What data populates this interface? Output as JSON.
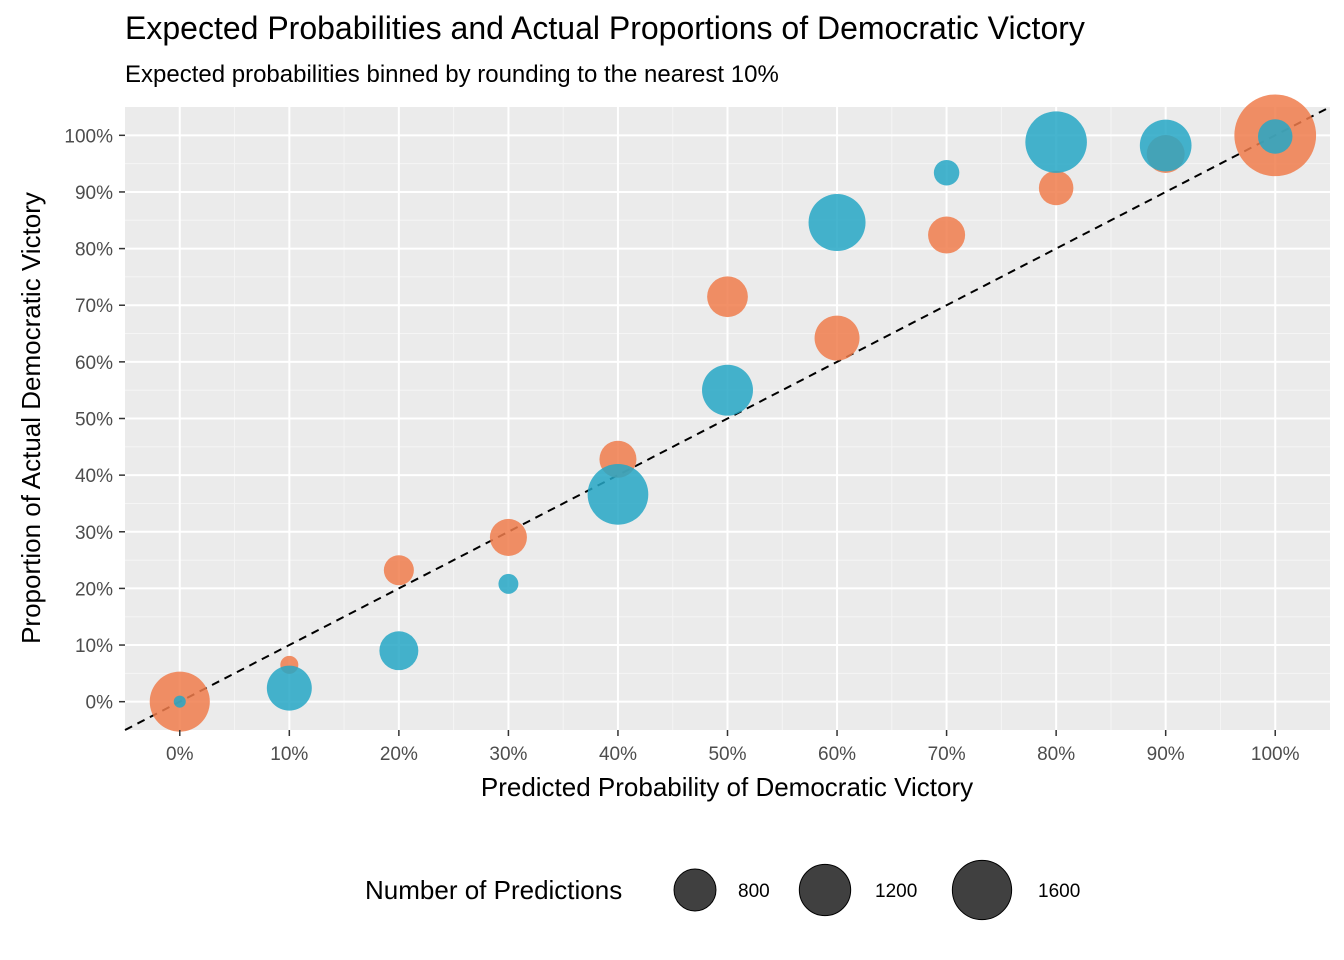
{
  "chart_data": {
    "type": "scatter",
    "title": "Expected Probabilities and Actual Proportions of Democratic Victory",
    "subtitle": "Expected probabilities binned by rounding to the nearest 10%",
    "xlabel": "Predicted Probability of Democratic Victory",
    "ylabel": "Proportion of Actual Democratic Victory",
    "xlim": [
      -0.05,
      1.05
    ],
    "ylim": [
      -0.05,
      1.05
    ],
    "x_ticks": [
      0,
      0.1,
      0.2,
      0.3,
      0.4,
      0.5,
      0.6,
      0.7,
      0.8,
      0.9,
      1.0
    ],
    "x_tick_labels": [
      "0%",
      "10%",
      "20%",
      "30%",
      "40%",
      "50%",
      "60%",
      "70%",
      "80%",
      "90%",
      "100%"
    ],
    "y_ticks": [
      0,
      0.1,
      0.2,
      0.3,
      0.4,
      0.5,
      0.6,
      0.7,
      0.8,
      0.9,
      1.0
    ],
    "y_tick_labels": [
      "0%",
      "10%",
      "20%",
      "30%",
      "40%",
      "50%",
      "60%",
      "70%",
      "80%",
      "90%",
      "100%"
    ],
    "grid": true,
    "reference_line": {
      "type": "diagonal",
      "style": "dashed",
      "color": "#000000"
    },
    "background_color": "#ebebeb",
    "legend": {
      "title": "Number of Predictions",
      "placement": "bottom",
      "sizes": [
        800,
        1200,
        1600
      ],
      "labels": [
        "800",
        "1200",
        "1600"
      ]
    },
    "series": [
      {
        "color": "#f07c4c",
        "points": [
          {
            "x": 0.0,
            "y": 0.0,
            "size": 1000
          },
          {
            "x": 0.1,
            "y": 0.065,
            "size": 90
          },
          {
            "x": 0.2,
            "y": 0.232,
            "size": 250
          },
          {
            "x": 0.3,
            "y": 0.29,
            "size": 380
          },
          {
            "x": 0.4,
            "y": 0.428,
            "size": 380
          },
          {
            "x": 0.5,
            "y": 0.715,
            "size": 460
          },
          {
            "x": 0.6,
            "y": 0.642,
            "size": 560
          },
          {
            "x": 0.7,
            "y": 0.824,
            "size": 380
          },
          {
            "x": 0.8,
            "y": 0.907,
            "size": 330
          },
          {
            "x": 0.9,
            "y": 0.967,
            "size": 400
          },
          {
            "x": 1.0,
            "y": 1.0,
            "size": 1850
          }
        ]
      },
      {
        "color": "#26a7c5",
        "points": [
          {
            "x": 0.0,
            "y": 0.0,
            "size": 40
          },
          {
            "x": 0.1,
            "y": 0.024,
            "size": 560
          },
          {
            "x": 0.2,
            "y": 0.09,
            "size": 420
          },
          {
            "x": 0.3,
            "y": 0.208,
            "size": 110
          },
          {
            "x": 0.4,
            "y": 0.366,
            "size": 1020
          },
          {
            "x": 0.5,
            "y": 0.55,
            "size": 720
          },
          {
            "x": 0.6,
            "y": 0.846,
            "size": 900
          },
          {
            "x": 0.7,
            "y": 0.934,
            "size": 180
          },
          {
            "x": 0.8,
            "y": 0.988,
            "size": 1050
          },
          {
            "x": 0.9,
            "y": 0.982,
            "size": 740
          },
          {
            "x": 1.0,
            "y": 0.998,
            "size": 330
          }
        ]
      }
    ]
  }
}
